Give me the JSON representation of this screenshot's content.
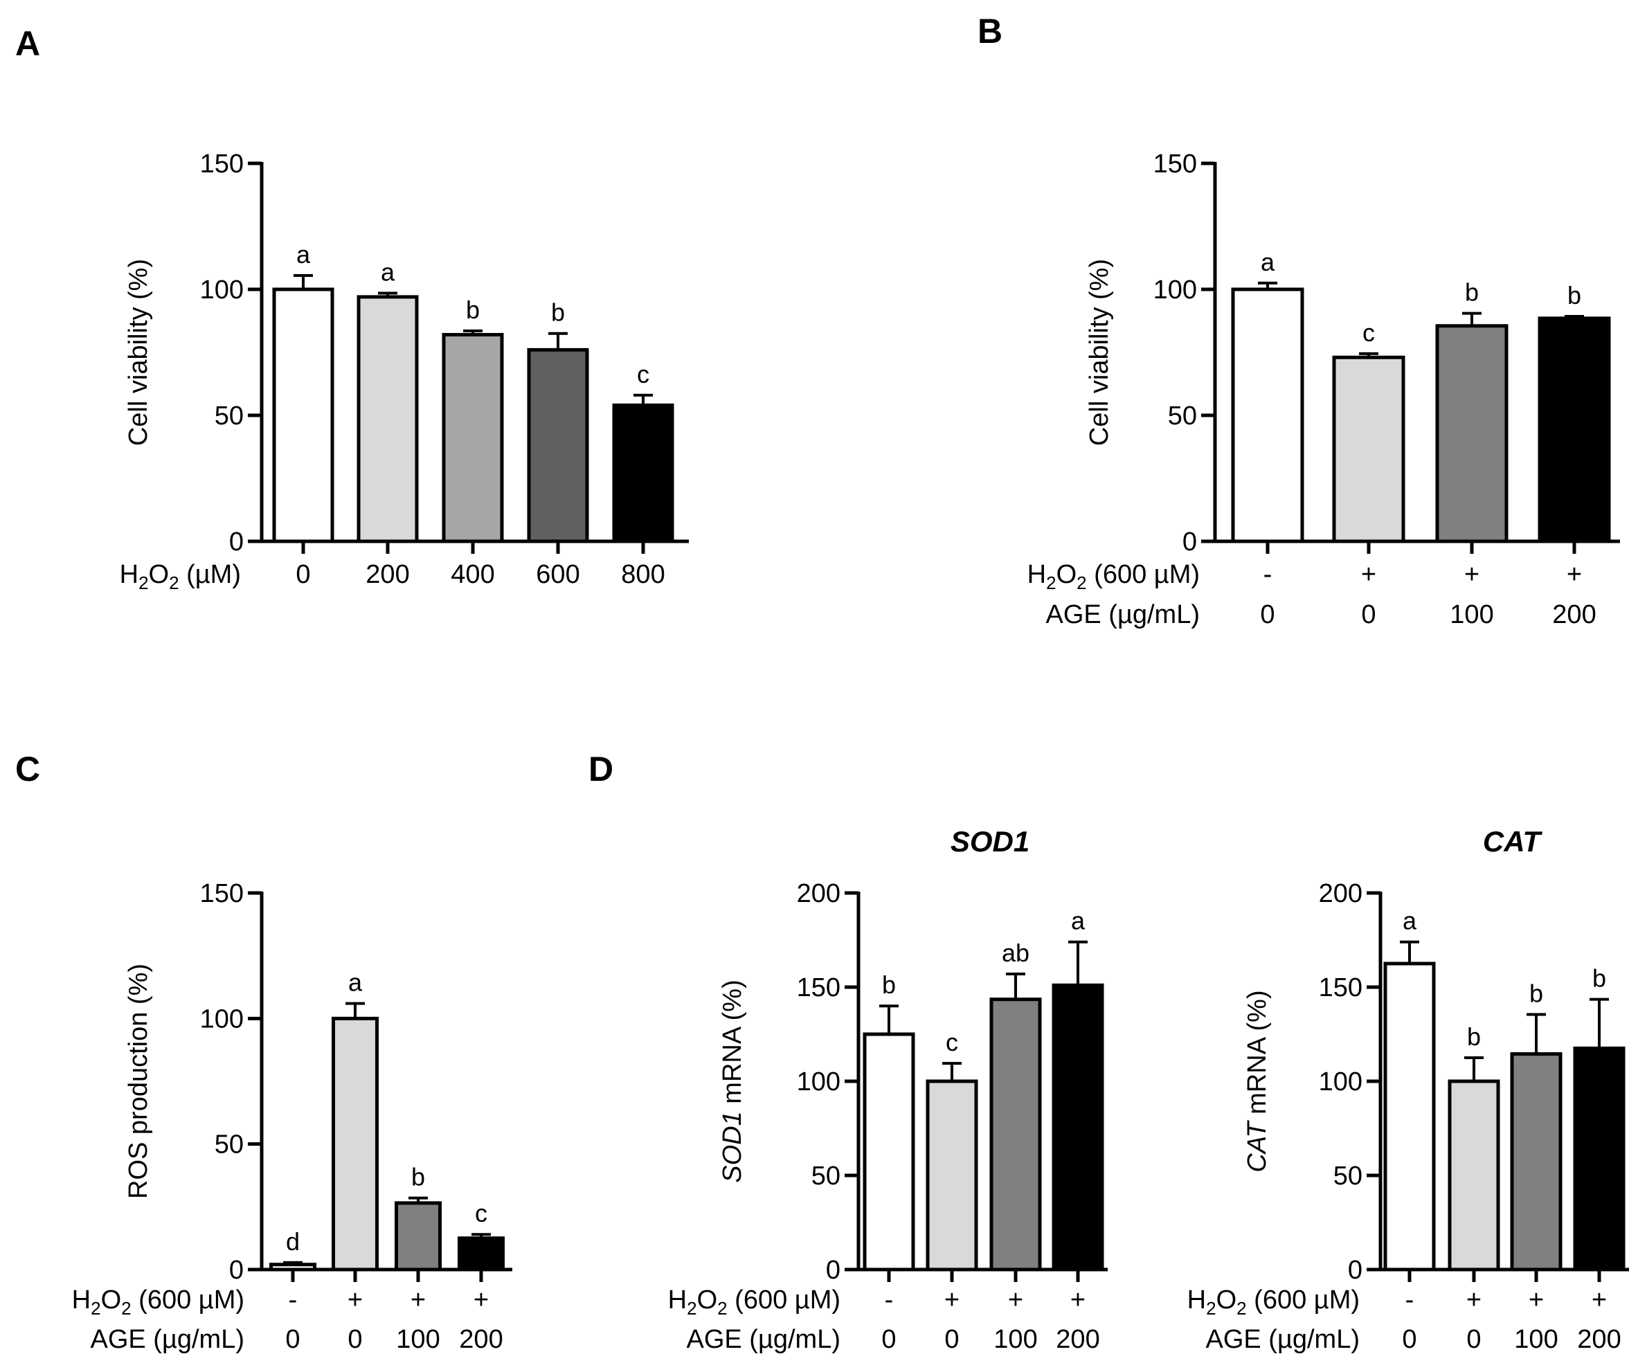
{
  "chart_data": [
    {
      "id": "A",
      "panel": "A",
      "type": "bar",
      "title": "",
      "ylabel": "Cell viability (%)",
      "ylim": [
        0,
        150
      ],
      "yticks": [
        0,
        50,
        100,
        150
      ],
      "categories": [
        "0",
        "200",
        "400",
        "600",
        "800"
      ],
      "values": [
        100,
        97,
        82,
        76,
        54
      ],
      "errors": [
        5.5,
        1.5,
        1.5,
        6.5,
        4
      ],
      "significance": [
        "a",
        "a",
        "b",
        "b",
        "c"
      ],
      "colors": [
        "#ffffff",
        "#d9d9d9",
        "#a6a6a6",
        "#606060",
        "#000000"
      ],
      "conditions": [
        {
          "label_main": "H",
          "label_sub": "2",
          "label_mid": "O",
          "label_sub2": "2",
          "label_tail": " (µM)",
          "values": [
            "0",
            "200",
            "400",
            "600",
            "800"
          ]
        }
      ]
    },
    {
      "id": "B",
      "panel": "B",
      "type": "bar",
      "title": "",
      "ylabel": "Cell viability (%)",
      "ylim": [
        0,
        150
      ],
      "yticks": [
        0,
        50,
        100,
        150
      ],
      "categories": [
        "-/0",
        "+/0",
        "+/100",
        "+/200"
      ],
      "values": [
        100,
        73,
        85.5,
        88.5
      ],
      "errors": [
        2.5,
        1.5,
        5,
        0.8
      ],
      "significance": [
        "a",
        "c",
        "b",
        "b"
      ],
      "colors": [
        "#ffffff",
        "#d9d9d9",
        "#808080",
        "#000000"
      ],
      "conditions": [
        {
          "label_main": "H",
          "label_sub": "2",
          "label_mid": "O",
          "label_sub2": "2",
          "label_tail": " (600 µM)",
          "values": [
            "-",
            "+",
            "+",
            "+"
          ]
        },
        {
          "label_main": "AGE (µg/mL)",
          "values": [
            "0",
            "0",
            "100",
            "200"
          ]
        }
      ]
    },
    {
      "id": "C",
      "panel": "C",
      "type": "bar",
      "title": "",
      "ylabel": "ROS production (%)",
      "ylim": [
        0,
        150
      ],
      "yticks": [
        0,
        50,
        100,
        150
      ],
      "categories": [
        "-/0",
        "+/0",
        "+/100",
        "+/200"
      ],
      "values": [
        2,
        100,
        26.5,
        12.5
      ],
      "errors": [
        0.8,
        6,
        2,
        1.5
      ],
      "significance": [
        "d",
        "a",
        "b",
        "c"
      ],
      "colors": [
        "#ffffff",
        "#d9d9d9",
        "#808080",
        "#000000"
      ],
      "conditions": [
        {
          "label_main": "H",
          "label_sub": "2",
          "label_mid": "O",
          "label_sub2": "2",
          "label_tail": " (600 µM)",
          "values": [
            "-",
            "+",
            "+",
            "+"
          ]
        },
        {
          "label_main": "AGE (µg/mL)",
          "values": [
            "0",
            "0",
            "100",
            "200"
          ]
        }
      ]
    },
    {
      "id": "D1",
      "panel": "D",
      "type": "bar",
      "title": "SOD1",
      "ylabel_italic": "SOD1",
      "ylabel": " mRNA (%)",
      "ylim": [
        0,
        200
      ],
      "yticks": [
        0,
        50,
        100,
        150,
        200
      ],
      "categories": [
        "-/0",
        "+/0",
        "+/100",
        "+/200"
      ],
      "values": [
        125,
        100,
        143.5,
        151
      ],
      "errors": [
        15,
        9.5,
        13.5,
        23
      ],
      "significance": [
        "b",
        "c",
        "ab",
        "a"
      ],
      "colors": [
        "#ffffff",
        "#d9d9d9",
        "#808080",
        "#000000"
      ],
      "conditions": [
        {
          "label_main": "H",
          "label_sub": "2",
          "label_mid": "O",
          "label_sub2": "2",
          "label_tail": " (600 µM)",
          "values": [
            "-",
            "+",
            "+",
            "+"
          ]
        },
        {
          "label_main": "AGE (µg/mL)",
          "values": [
            "0",
            "0",
            "100",
            "200"
          ]
        }
      ]
    },
    {
      "id": "D2",
      "panel": "",
      "type": "bar",
      "title": "CAT",
      "ylabel_italic": "CAT",
      "ylabel": " mRNA (%)",
      "ylim": [
        0,
        200
      ],
      "yticks": [
        0,
        50,
        100,
        150,
        200
      ],
      "categories": [
        "-/0",
        "+/0",
        "+/100",
        "+/200"
      ],
      "values": [
        162.5,
        100,
        114.5,
        117.5
      ],
      "errors": [
        11.5,
        12.5,
        21,
        26
      ],
      "significance": [
        "a",
        "b",
        "b",
        "b"
      ],
      "colors": [
        "#ffffff",
        "#d9d9d9",
        "#808080",
        "#000000"
      ],
      "conditions": [
        {
          "label_main": "H",
          "label_sub": "2",
          "label_mid": "O",
          "label_sub2": "2",
          "label_tail": " (600 µM)",
          "values": [
            "-",
            "+",
            "+",
            "+"
          ]
        },
        {
          "label_main": "AGE (µg/mL)",
          "values": [
            "0",
            "0",
            "100",
            "200"
          ]
        }
      ]
    }
  ]
}
